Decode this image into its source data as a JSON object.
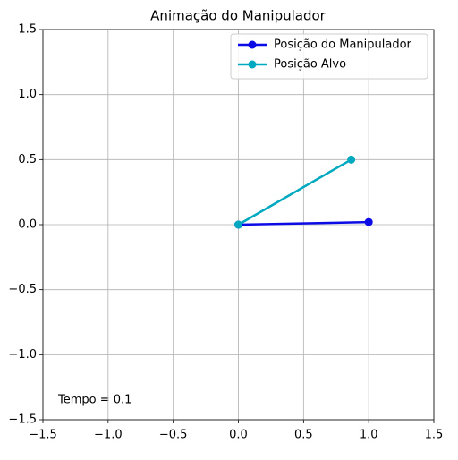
{
  "chart_data": {
    "type": "line",
    "title": "Animação do Manipulador",
    "series": [
      {
        "name": "Posição do Manipulador",
        "color": "#0b0be6",
        "x": [
          0.0,
          1.0
        ],
        "y": [
          0.0,
          0.02
        ]
      },
      {
        "name": "Posição Alvo",
        "color": "#00a9bf",
        "x": [
          0.0,
          0.866
        ],
        "y": [
          0.0,
          0.5
        ]
      }
    ],
    "xlim": [
      -1.5,
      1.5
    ],
    "ylim": [
      -1.5,
      1.5
    ],
    "xticks": [
      {
        "value": -1.5,
        "label": "−1.5"
      },
      {
        "value": -1.0,
        "label": "−1.0"
      },
      {
        "value": -0.5,
        "label": "−0.5"
      },
      {
        "value": 0.0,
        "label": "0.0"
      },
      0.5,
      {
        "value": 1.0,
        "label": "1.0"
      },
      1.5
    ],
    "yticks": [
      {
        "value": -1.5,
        "label": "−1.5"
      },
      {
        "value": -1.0,
        "label": "−1.0"
      },
      {
        "value": -0.5,
        "label": "−0.5"
      },
      {
        "value": 0.0,
        "label": "0.0"
      },
      0.5,
      {
        "value": 1.0,
        "label": "1.0"
      },
      1.5
    ],
    "grid": true,
    "legend": "upper right",
    "annotation": "Tempo = 0.1"
  }
}
